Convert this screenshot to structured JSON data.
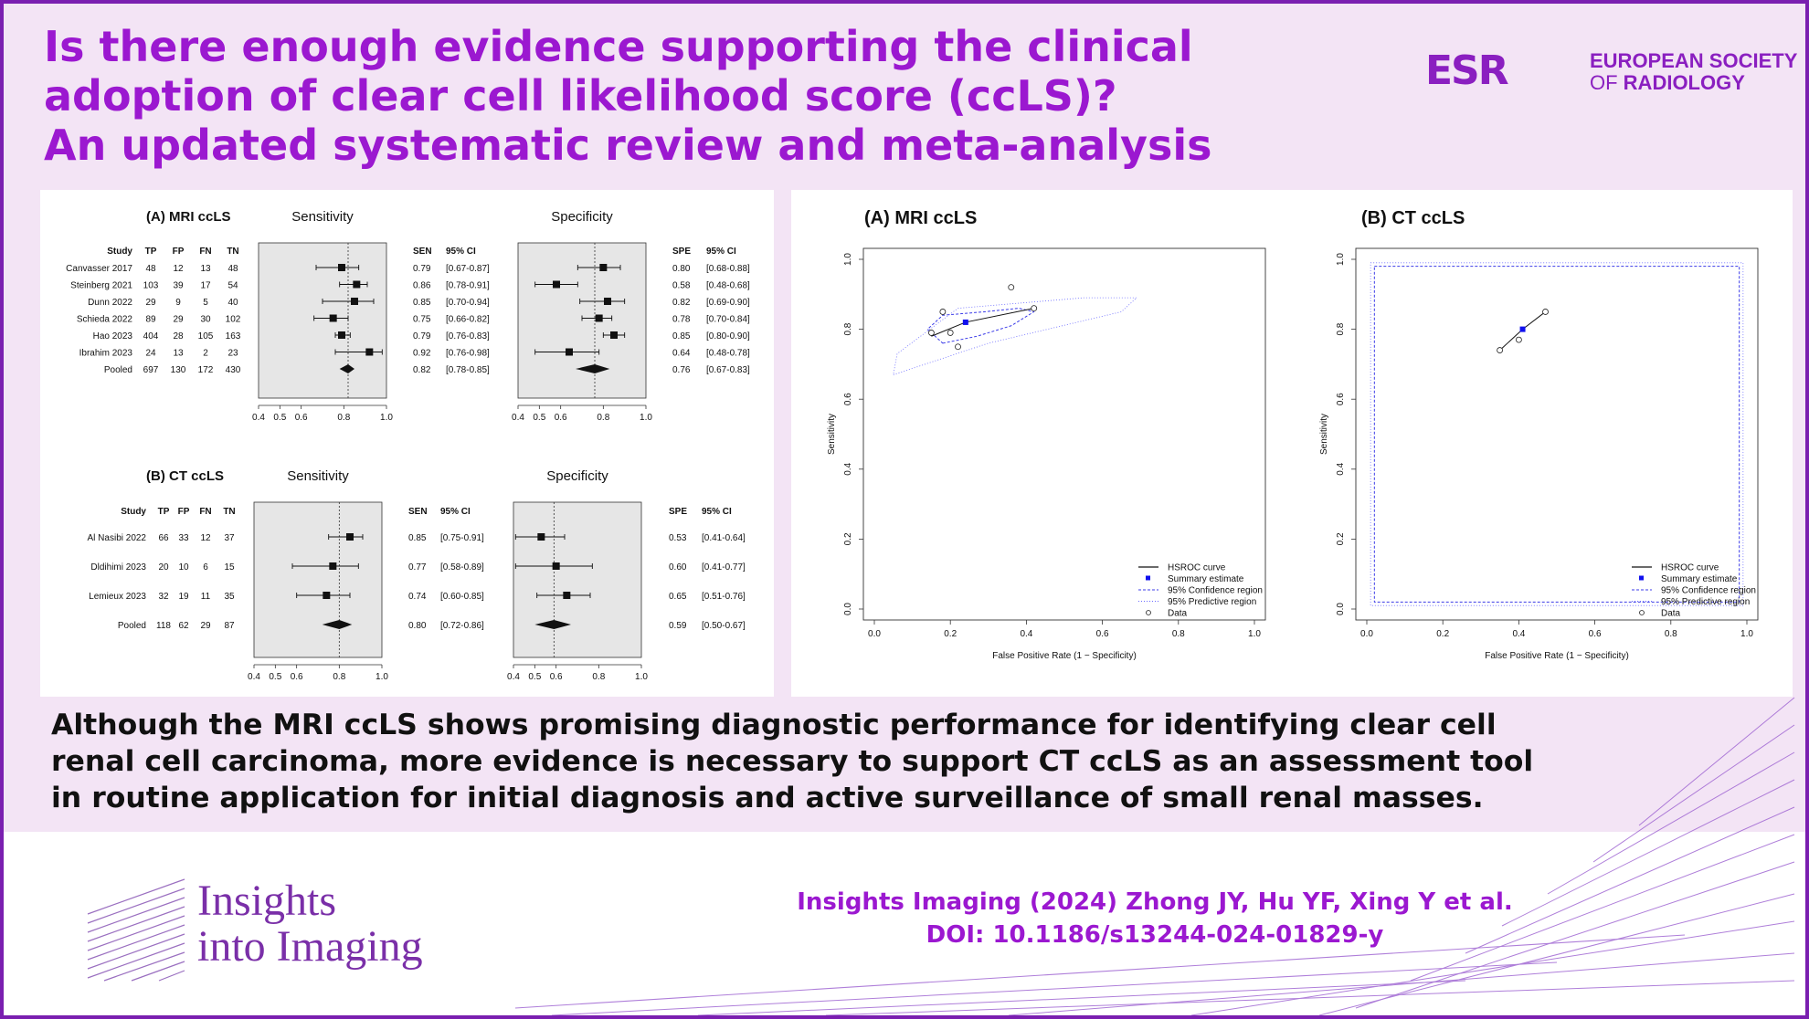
{
  "title": {
    "lines": [
      "Is there enough evidence supporting the clinical",
      "adoption of clear cell likelihood score (ccLS)?",
      "An updated systematic review and meta-analysis"
    ]
  },
  "brand": {
    "esr_mark": "ESR",
    "esr_line1": "EUROPEAN SOCIETY",
    "esr_line2_a": "OF ",
    "esr_line2_b": "RADIOLOGY",
    "journal_line1": "Insights",
    "journal_line2": "into Imaging",
    "purple": "#9b18d0",
    "band": "#f3e4f5"
  },
  "conclusion": {
    "lines": [
      "Although the MRI ccLS shows promising diagnostic performance for identifying clear cell",
      "renal cell carcinoma, more evidence is necessary to support CT ccLS as an assessment tool",
      "in routine application for initial diagnosis and active surveillance of small renal masses."
    ]
  },
  "citation": {
    "line1": "Insights Imaging (2024) Zhong JY, Hu YF, Xing Y et al.",
    "line2": "DOI: 10.1186/s13244-024-01829-y"
  },
  "chart_data": [
    {
      "type": "forest",
      "title": "(A) MRI ccLS",
      "columns": [
        "Study",
        "TP",
        "FP",
        "FN",
        "TN"
      ],
      "sens_title": "Sensitivity",
      "spec_title": "Specificity",
      "sens_header": "SEN",
      "spec_header": "SPE",
      "ci_header": "95% CI",
      "xlim": [
        0.4,
        1.0
      ],
      "ticks": [
        "0.4",
        "0.5",
        "0.6",
        "0.8",
        "1.0"
      ],
      "tick_values": [
        0.4,
        0.5,
        0.6,
        0.8,
        1.0
      ],
      "studies": [
        {
          "study": "Canvasser 2017",
          "tp": "48",
          "fp": "12",
          "fn": "13",
          "tn": "48",
          "sen": 0.79,
          "sen_lo": 0.67,
          "sen_hi": 0.87,
          "sen_text": "0.79",
          "sen_ci": "[0.67-0.87]",
          "spe": 0.8,
          "spe_lo": 0.68,
          "spe_hi": 0.88,
          "spe_text": "0.80",
          "spe_ci": "[0.68-0.88]"
        },
        {
          "study": "Steinberg 2021",
          "tp": "103",
          "fp": "39",
          "fn": "17",
          "tn": "54",
          "sen": 0.86,
          "sen_lo": 0.78,
          "sen_hi": 0.91,
          "sen_text": "0.86",
          "sen_ci": "[0.78-0.91]",
          "spe": 0.58,
          "spe_lo": 0.48,
          "spe_hi": 0.68,
          "spe_text": "0.58",
          "spe_ci": "[0.48-0.68]"
        },
        {
          "study": "Dunn 2022",
          "tp": "29",
          "fp": "9",
          "fn": "5",
          "tn": "40",
          "sen": 0.85,
          "sen_lo": 0.7,
          "sen_hi": 0.94,
          "sen_text": "0.85",
          "sen_ci": "[0.70-0.94]",
          "spe": 0.82,
          "spe_lo": 0.69,
          "spe_hi": 0.9,
          "spe_text": "0.82",
          "spe_ci": "[0.69-0.90]"
        },
        {
          "study": "Schieda 2022",
          "tp": "89",
          "fp": "29",
          "fn": "30",
          "tn": "102",
          "sen": 0.75,
          "sen_lo": 0.66,
          "sen_hi": 0.82,
          "sen_text": "0.75",
          "sen_ci": "[0.66-0.82]",
          "spe": 0.78,
          "spe_lo": 0.7,
          "spe_hi": 0.84,
          "spe_text": "0.78",
          "spe_ci": "[0.70-0.84]"
        },
        {
          "study": "Hao 2023",
          "tp": "404",
          "fp": "28",
          "fn": "105",
          "tn": "163",
          "sen": 0.79,
          "sen_lo": 0.76,
          "sen_hi": 0.83,
          "sen_text": "0.79",
          "sen_ci": "[0.76-0.83]",
          "spe": 0.85,
          "spe_lo": 0.8,
          "spe_hi": 0.9,
          "spe_text": "0.85",
          "spe_ci": "[0.80-0.90]"
        },
        {
          "study": "Ibrahim 2023",
          "tp": "24",
          "fp": "13",
          "fn": "2",
          "tn": "23",
          "sen": 0.92,
          "sen_lo": 0.76,
          "sen_hi": 0.98,
          "sen_text": "0.92",
          "sen_ci": "[0.76-0.98]",
          "spe": 0.64,
          "spe_lo": 0.48,
          "spe_hi": 0.78,
          "spe_text": "0.64",
          "spe_ci": "[0.48-0.78]"
        }
      ],
      "pooled": {
        "study": "Pooled",
        "tp": "697",
        "fp": "130",
        "fn": "172",
        "tn": "430",
        "sen": 0.82,
        "sen_lo": 0.78,
        "sen_hi": 0.85,
        "sen_text": "0.82",
        "sen_ci": "[0.78-0.85]",
        "spe": 0.76,
        "spe_lo": 0.67,
        "spe_hi": 0.83,
        "spe_text": "0.76",
        "spe_ci": "[0.67-0.83]"
      }
    },
    {
      "type": "forest",
      "title": "(B) CT ccLS",
      "columns": [
        "Study",
        "TP",
        "FP",
        "FN",
        "TN"
      ],
      "sens_title": "Sensitivity",
      "spec_title": "Specificity",
      "sens_header": "SEN",
      "spec_header": "SPE",
      "ci_header": "95% CI",
      "xlim": [
        0.4,
        1.0
      ],
      "ticks": [
        "0.4",
        "0.5",
        "0.6",
        "0.8",
        "1.0"
      ],
      "tick_values": [
        0.4,
        0.5,
        0.6,
        0.8,
        1.0
      ],
      "studies": [
        {
          "study": "Al Nasibi 2022",
          "tp": "66",
          "fp": "33",
          "fn": "12",
          "tn": "37",
          "sen": 0.85,
          "sen_lo": 0.75,
          "sen_hi": 0.91,
          "sen_text": "0.85",
          "sen_ci": "[0.75-0.91]",
          "spe": 0.53,
          "spe_lo": 0.41,
          "spe_hi": 0.64,
          "spe_text": "0.53",
          "spe_ci": "[0.41-0.64]"
        },
        {
          "study": "Dldihimi 2023",
          "tp": "20",
          "fp": "10",
          "fn": "6",
          "tn": "15",
          "sen": 0.77,
          "sen_lo": 0.58,
          "sen_hi": 0.89,
          "sen_text": "0.77",
          "sen_ci": "[0.58-0.89]",
          "spe": 0.6,
          "spe_lo": 0.41,
          "spe_hi": 0.77,
          "spe_text": "0.60",
          "spe_ci": "[0.41-0.77]"
        },
        {
          "study": "Lemieux 2023",
          "tp": "32",
          "fp": "19",
          "fn": "11",
          "tn": "35",
          "sen": 0.74,
          "sen_lo": 0.6,
          "sen_hi": 0.85,
          "sen_text": "0.74",
          "sen_ci": "[0.60-0.85]",
          "spe": 0.65,
          "spe_lo": 0.51,
          "spe_hi": 0.76,
          "spe_text": "0.65",
          "spe_ci": "[0.51-0.76]"
        }
      ],
      "pooled": {
        "study": "Pooled",
        "tp": "118",
        "fp": "62",
        "fn": "29",
        "tn": "87",
        "sen": 0.8,
        "sen_lo": 0.72,
        "sen_hi": 0.86,
        "sen_text": "0.80",
        "sen_ci": "[0.72-0.86]",
        "spe": 0.59,
        "spe_lo": 0.5,
        "spe_hi": 0.67,
        "spe_text": "0.59",
        "spe_ci": "[0.50-0.67]"
      }
    },
    {
      "type": "scatter",
      "title": "(A) MRI ccLS",
      "xlabel": "False Positive Rate (1 − Specificity)",
      "ylabel": "Sensitivity",
      "xlim": [
        0,
        1
      ],
      "ylim": [
        0,
        1
      ],
      "ticks": [
        "0.0",
        "0.2",
        "0.4",
        "0.6",
        "0.8",
        "1.0"
      ],
      "tick_values": [
        0,
        0.2,
        0.4,
        0.6,
        0.8,
        1.0
      ],
      "data_points": [
        [
          0.2,
          0.79
        ],
        [
          0.42,
          0.86
        ],
        [
          0.18,
          0.85
        ],
        [
          0.22,
          0.75
        ],
        [
          0.15,
          0.79
        ],
        [
          0.36,
          0.92
        ]
      ],
      "summary": [
        0.24,
        0.82
      ],
      "hsroc_curve": [
        [
          0.15,
          0.78
        ],
        [
          0.24,
          0.82
        ],
        [
          0.42,
          0.86
        ]
      ],
      "confidence_region": [
        [
          0.18,
          0.76
        ],
        [
          0.27,
          0.78
        ],
        [
          0.36,
          0.81
        ],
        [
          0.42,
          0.85
        ],
        [
          0.38,
          0.86
        ],
        [
          0.29,
          0.85
        ],
        [
          0.18,
          0.84
        ],
        [
          0.14,
          0.8
        ]
      ],
      "predictive_region": [
        [
          0.05,
          0.67
        ],
        [
          0.3,
          0.76
        ],
        [
          0.65,
          0.85
        ],
        [
          0.69,
          0.89
        ],
        [
          0.55,
          0.89
        ],
        [
          0.22,
          0.86
        ],
        [
          0.06,
          0.73
        ]
      ],
      "legend": [
        "HSROC curve",
        "Summary estimate",
        "95% Confidence region",
        "95% Predictive region",
        "Data"
      ],
      "legend_position": "bottom-right"
    },
    {
      "type": "scatter",
      "title": "(B) CT ccLS",
      "xlabel": "False Positive Rate (1 − Specificity)",
      "ylabel": "Sensitivity",
      "xlim": [
        0,
        1
      ],
      "ylim": [
        0,
        1
      ],
      "ticks": [
        "0.0",
        "0.2",
        "0.4",
        "0.6",
        "0.8",
        "1.0"
      ],
      "tick_values": [
        0,
        0.2,
        0.4,
        0.6,
        0.8,
        1.0
      ],
      "data_points": [
        [
          0.47,
          0.85
        ],
        [
          0.4,
          0.77
        ],
        [
          0.35,
          0.74
        ]
      ],
      "summary": [
        0.41,
        0.8
      ],
      "hsroc_curve": [
        [
          0.35,
          0.74
        ],
        [
          0.41,
          0.8
        ],
        [
          0.47,
          0.85
        ]
      ],
      "confidence_region": [
        [
          0.02,
          0.98
        ],
        [
          0.98,
          0.98
        ],
        [
          0.98,
          0.02
        ],
        [
          0.02,
          0.02
        ]
      ],
      "predictive_region": [
        [
          0.01,
          0.99
        ],
        [
          0.99,
          0.99
        ],
        [
          0.99,
          0.01
        ],
        [
          0.01,
          0.01
        ]
      ],
      "legend": [
        "HSROC curve",
        "Summary estimate",
        "95% Confidence region",
        "95% Predictive region",
        "Data"
      ],
      "legend_position": "bottom-right"
    }
  ]
}
